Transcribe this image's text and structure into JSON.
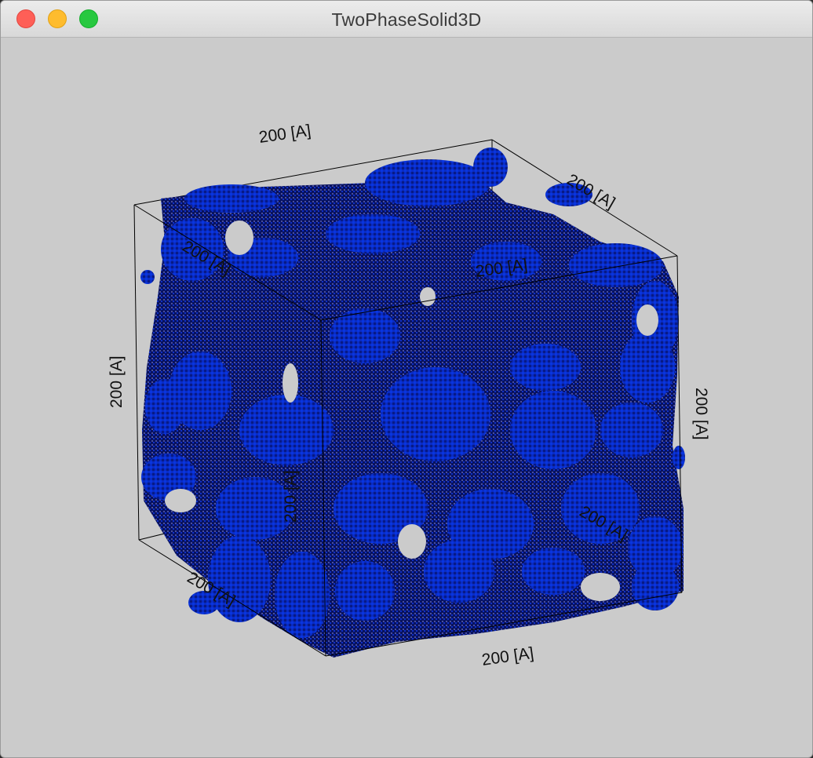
{
  "window": {
    "title": "TwoPhaseSolid3D"
  },
  "colors": {
    "solid_phase_face": "#0a30d8",
    "solid_phase_shadow": "#06115a",
    "background": "#cbcbcb",
    "frame_line": "#000000"
  },
  "scene": {
    "description_type": "3d-voxel-render",
    "axis_labels": {
      "top_back": "200 [A]",
      "top_right_back": "200 [A]",
      "top_left_front": "200 [A]",
      "top_right_front": "200 [A]",
      "left_vertical": "200 [A]",
      "right_vertical": "200 [A]",
      "middle_vertical": "200 [A]",
      "bottom_right_back": "200 [A]",
      "bottom_left": "200 [A]",
      "bottom_front": "200 [A]"
    }
  }
}
